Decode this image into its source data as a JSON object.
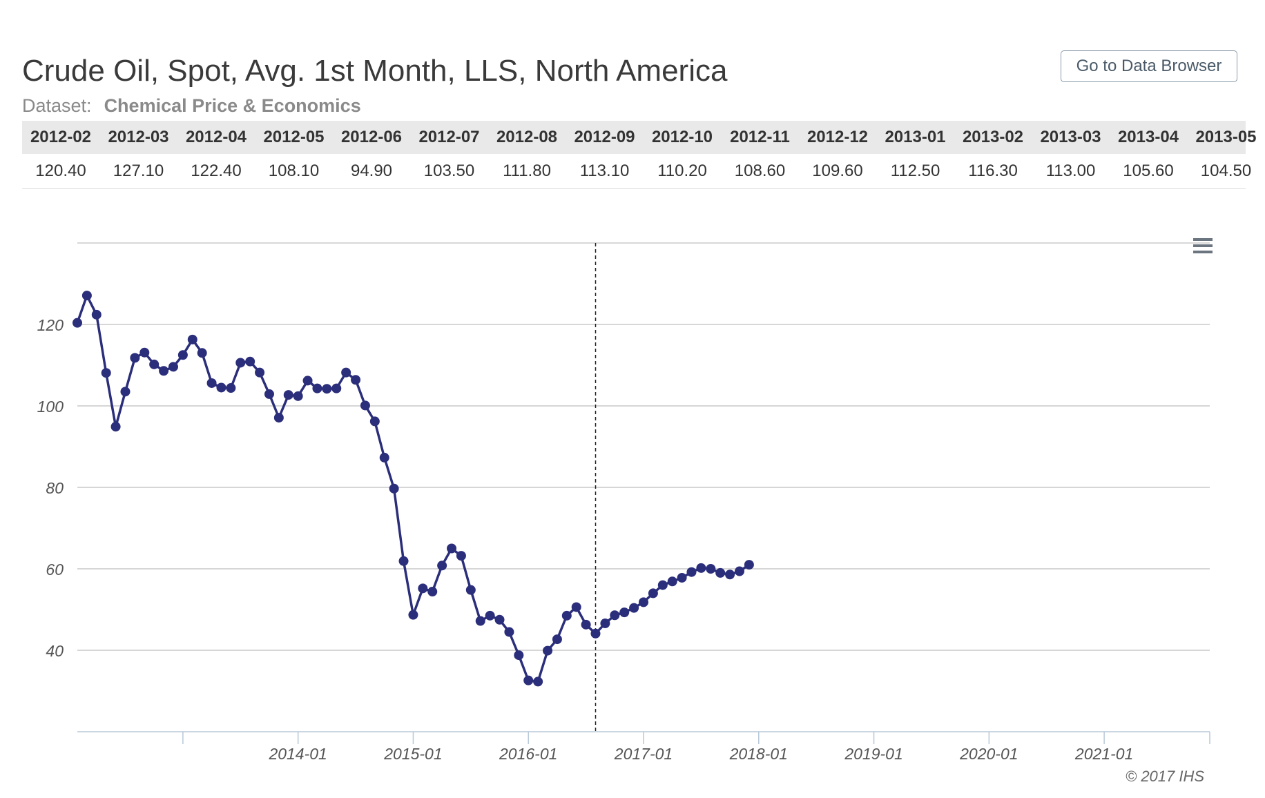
{
  "title": "Crude Oil, Spot, Avg. 1st Month, LLS, North America",
  "dataset": {
    "label": "Dataset:",
    "name": "Chemical Price & Economics"
  },
  "browse_button": "Go to Data Browser",
  "copyright": "© 2017 IHS",
  "table": {
    "periods": [
      "2012-02",
      "2012-03",
      "2012-04",
      "2012-05",
      "2012-06",
      "2012-07",
      "2012-08",
      "2012-09",
      "2012-10",
      "2012-11",
      "2012-12",
      "2013-01",
      "2013-02",
      "2013-03",
      "2013-04",
      "2013-05"
    ],
    "values": [
      "120.40",
      "127.10",
      "122.40",
      "108.10",
      "94.90",
      "103.50",
      "111.80",
      "113.10",
      "110.20",
      "108.60",
      "109.60",
      "112.50",
      "116.30",
      "113.00",
      "105.60",
      "104.50"
    ]
  },
  "chart_data": {
    "type": "line",
    "title": "",
    "xlabel": "",
    "ylabel": "",
    "xlim": [
      "2012-02",
      "2021-12"
    ],
    "ylim": [
      20,
      140
    ],
    "yticks": [
      40,
      60,
      80,
      100,
      120
    ],
    "xticks": [
      "2014-01",
      "2015-01",
      "2016-01",
      "2017-01",
      "2018-01",
      "2019-01",
      "2020-01",
      "2021-01"
    ],
    "grid": true,
    "legend": "none",
    "marker_date": "2016-08",
    "series_color": "#2b2e7a",
    "series": [
      {
        "x": [
          "2012-02",
          "2012-03",
          "2012-04",
          "2012-05",
          "2012-06",
          "2012-07",
          "2012-08",
          "2012-09",
          "2012-10",
          "2012-11",
          "2012-12",
          "2013-01",
          "2013-02",
          "2013-03",
          "2013-04",
          "2013-05",
          "2013-06",
          "2013-07",
          "2013-08",
          "2013-09",
          "2013-10",
          "2013-11",
          "2013-12",
          "2014-01",
          "2014-02",
          "2014-03",
          "2014-04",
          "2014-05",
          "2014-06",
          "2014-07",
          "2014-08",
          "2014-09",
          "2014-10",
          "2014-11",
          "2014-12",
          "2015-01",
          "2015-02",
          "2015-03",
          "2015-04",
          "2015-05",
          "2015-06",
          "2015-07",
          "2015-08",
          "2015-09",
          "2015-10",
          "2015-11",
          "2015-12",
          "2016-01",
          "2016-02",
          "2016-03",
          "2016-04",
          "2016-05",
          "2016-06",
          "2016-07",
          "2016-08",
          "2016-09",
          "2016-10",
          "2016-11",
          "2016-12",
          "2017-01",
          "2017-02",
          "2017-03",
          "2017-04",
          "2017-05",
          "2017-06",
          "2017-07",
          "2017-08",
          "2017-09",
          "2017-10",
          "2017-11",
          "2017-12"
        ],
        "values": [
          120.4,
          127.1,
          122.4,
          108.1,
          94.9,
          103.5,
          111.8,
          113.1,
          110.2,
          108.6,
          109.6,
          112.5,
          116.3,
          113.0,
          105.6,
          104.5,
          104.4,
          110.6,
          110.9,
          108.2,
          102.9,
          97.1,
          102.7,
          102.4,
          106.2,
          104.3,
          104.2,
          104.3,
          108.2,
          106.4,
          100.1,
          96.2,
          87.3,
          79.7,
          61.9,
          48.7,
          55.2,
          54.4,
          60.8,
          65.0,
          63.2,
          54.8,
          47.2,
          48.5,
          47.5,
          44.5,
          38.8,
          32.6,
          32.3,
          39.9,
          42.7,
          48.5,
          50.6,
          46.3,
          44.1,
          46.6,
          48.6,
          49.3,
          50.4,
          51.8,
          54.0,
          56.0,
          56.9,
          57.8,
          59.2,
          60.2,
          60.0,
          59.0,
          58.6,
          59.4,
          61.0
        ]
      }
    ]
  }
}
